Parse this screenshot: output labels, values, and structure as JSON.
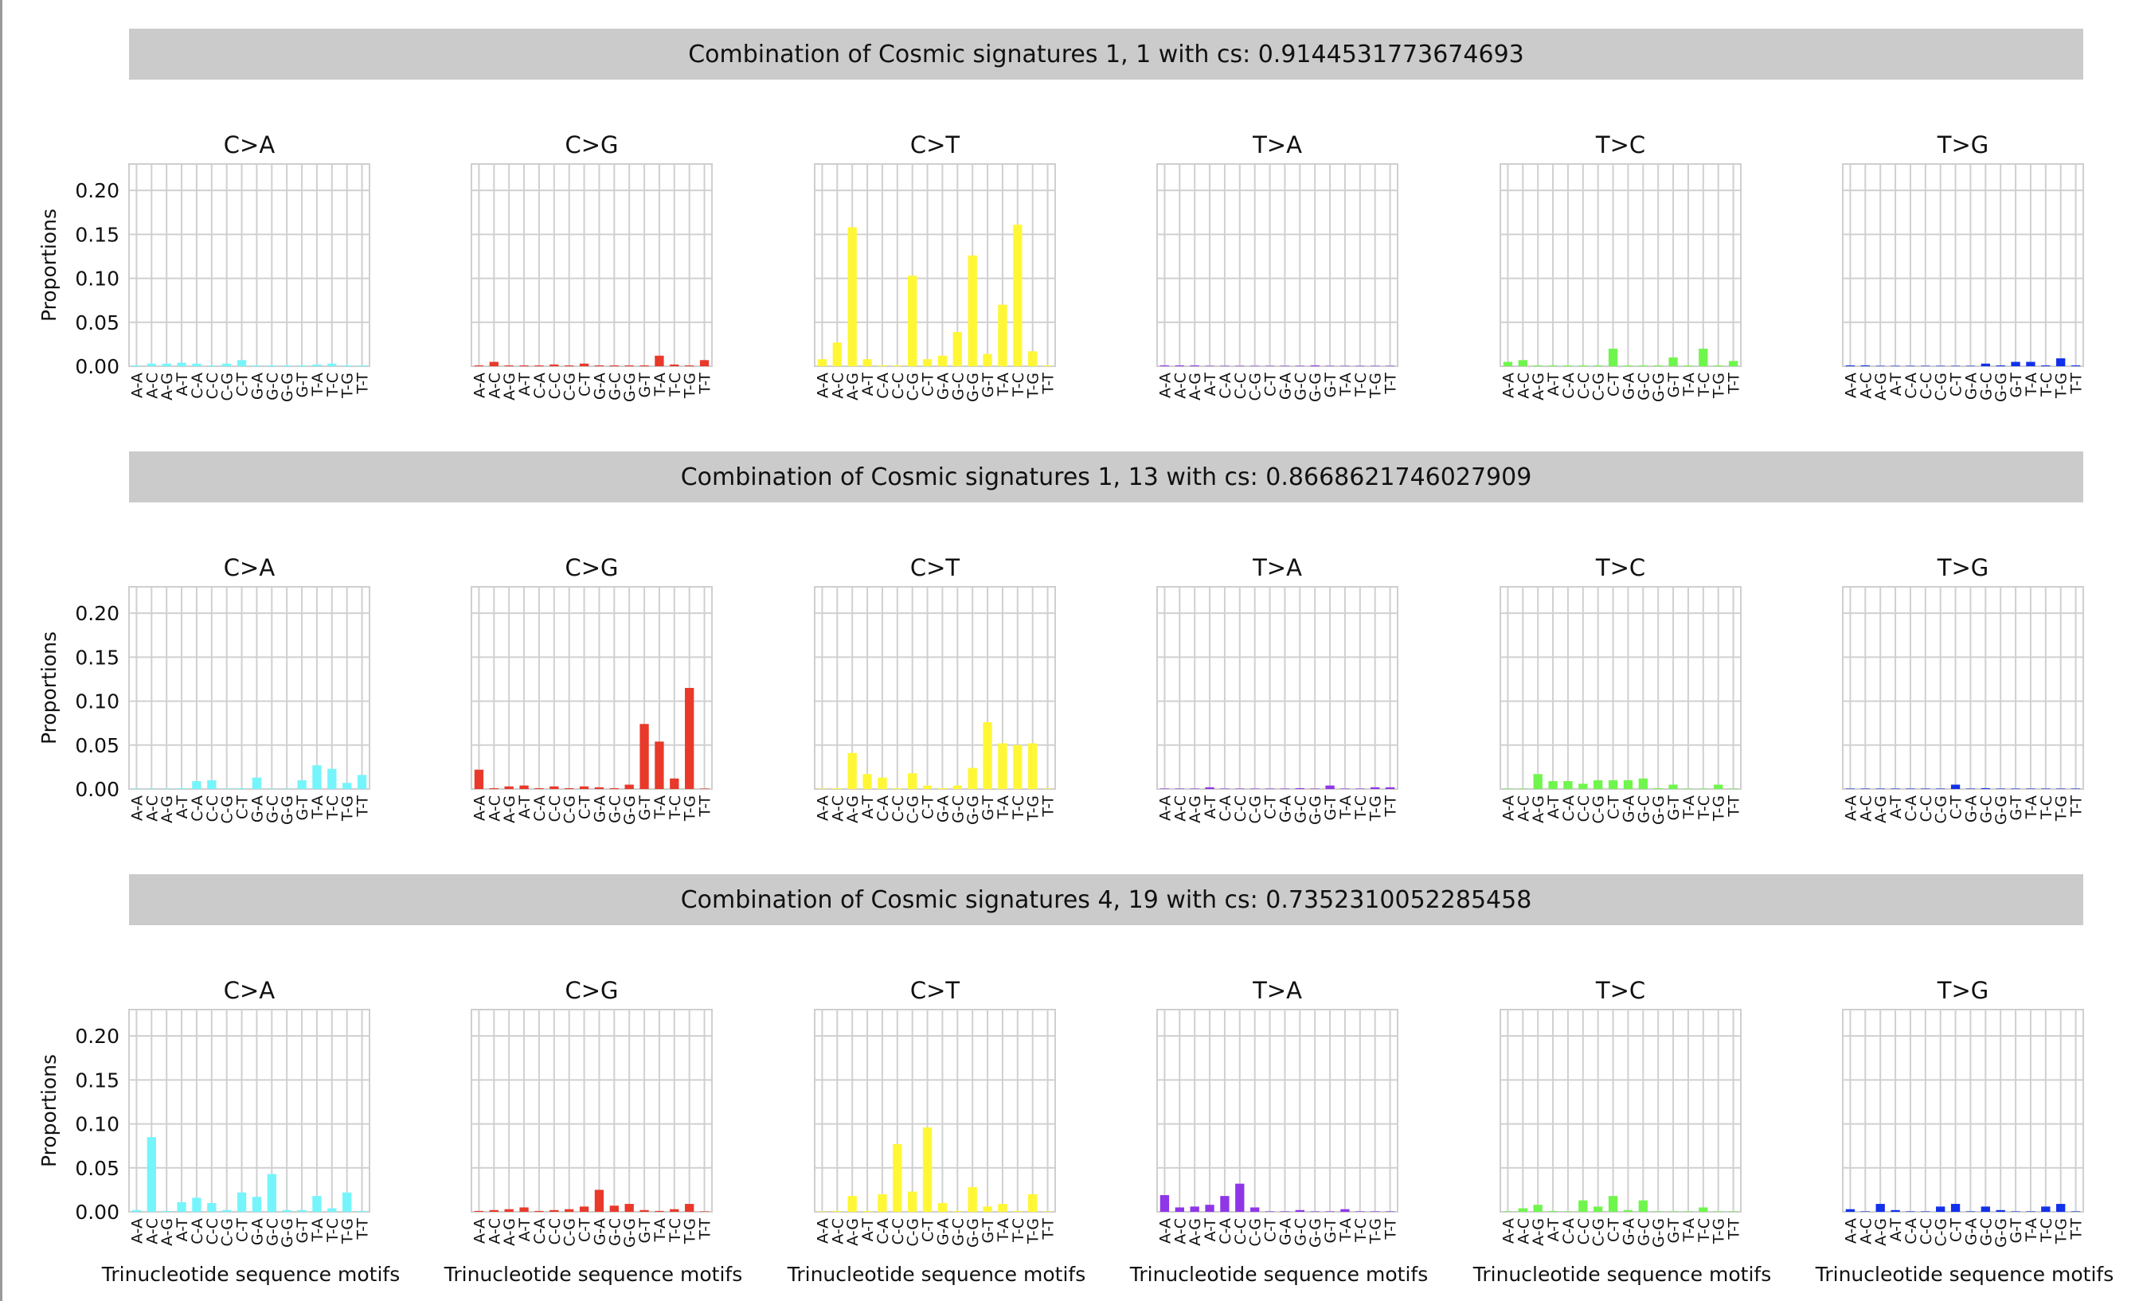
{
  "chart_data": {
    "type": "bar",
    "title": "",
    "ylabel": "Proportions",
    "xlabel": "Trinucleotide sequence motifs",
    "ylim": [
      0,
      0.23
    ],
    "yticks": [
      "0.00",
      "0.05",
      "0.10",
      "0.15",
      "0.20"
    ],
    "categories": [
      "A-A",
      "A-C",
      "A-G",
      "A-T",
      "C-A",
      "C-C",
      "C-G",
      "C-T",
      "G-A",
      "G-C",
      "G-G",
      "G-T",
      "T-A",
      "T-C",
      "T-G",
      "T-T"
    ],
    "panels": [
      "C>A",
      "C>G",
      "C>T",
      "T>A",
      "T>C",
      "T>G"
    ],
    "colors": {
      "C>A": "#75f5fb",
      "C>G": "#e8392b",
      "C>T": "#fff735",
      "T>A": "#8f36e8",
      "T>C": "#70f54d",
      "T>G": "#1231e8"
    },
    "rows": [
      {
        "title": "Combination of Cosmic signatures 1, 1 with cs: 0.9144531773674693",
        "series": {
          "C>A": [
            0.001,
            0.003,
            0.003,
            0.004,
            0.003,
            0.001,
            0.003,
            0.007,
            0.001,
            0.001,
            0.001,
            0.001,
            0.002,
            0.003,
            0.001,
            0.001
          ],
          "C>G": [
            0.001,
            0.005,
            0.001,
            0.001,
            0.001,
            0.002,
            0.001,
            0.003,
            0.001,
            0.001,
            0.001,
            0.001,
            0.012,
            0.002,
            0.001,
            0.007
          ],
          "C>T": [
            0.008,
            0.027,
            0.158,
            0.008,
            0.001,
            0.001,
            0.103,
            0.008,
            0.012,
            0.039,
            0.126,
            0.014,
            0.07,
            0.161,
            0.017,
            0.001
          ],
          "T>A": [
            0.001,
            0.001,
            0.001,
            0.0005,
            0.0005,
            0.0005,
            0.0005,
            0.0005,
            0.0005,
            0.0005,
            0.001,
            0.0005,
            0.0005,
            0.0005,
            0.0005,
            0.0005
          ],
          "T>C": [
            0.005,
            0.007,
            0.001,
            0.001,
            0.001,
            0.001,
            0.001,
            0.02,
            0.001,
            0.001,
            0.001,
            0.01,
            0.001,
            0.02,
            0.001,
            0.006
          ],
          "T>G": [
            0.001,
            0.001,
            0.0005,
            0.0005,
            0.0005,
            0.0005,
            0.0005,
            0.0005,
            0.0005,
            0.003,
            0.001,
            0.005,
            0.005,
            0.001,
            0.009,
            0.001
          ]
        }
      },
      {
        "title": "Combination of Cosmic signatures 1, 13 with cs: 0.8668621746027909",
        "series": {
          "C>A": [
            0.0005,
            0.0005,
            0.0005,
            0.001,
            0.009,
            0.01,
            0.0005,
            0.001,
            0.013,
            0.0005,
            0.0005,
            0.01,
            0.027,
            0.023,
            0.007,
            0.016
          ],
          "C>G": [
            0.022,
            0.001,
            0.003,
            0.004,
            0.001,
            0.003,
            0.001,
            0.003,
            0.002,
            0.001,
            0.005,
            0.074,
            0.054,
            0.012,
            0.115,
            0.0005
          ],
          "C>T": [
            0.0005,
            0.001,
            0.041,
            0.017,
            0.013,
            0.001,
            0.018,
            0.004,
            0.001,
            0.004,
            0.024,
            0.076,
            0.052,
            0.05,
            0.052,
            0.0005
          ],
          "T>A": [
            0.0005,
            0.0005,
            0.0005,
            0.002,
            0.0005,
            0.0005,
            0.0005,
            0.0005,
            0.0005,
            0.001,
            0.0005,
            0.004,
            0.0005,
            0.0005,
            0.002,
            0.002
          ],
          "T>C": [
            0.0005,
            0.0005,
            0.017,
            0.009,
            0.009,
            0.006,
            0.01,
            0.01,
            0.01,
            0.012,
            0.001,
            0.005,
            0.0005,
            0.0005,
            0.005,
            0.0005
          ],
          "T>G": [
            0.0005,
            0.0005,
            0.0005,
            0.0005,
            0.0005,
            0.0005,
            0.0005,
            0.005,
            0.0005,
            0.001,
            0.0005,
            0.0005,
            0.0005,
            0.0005,
            0.0005,
            0.0005
          ]
        }
      },
      {
        "title": "Combination of Cosmic signatures 4, 19 with cs: 0.7352310052285458",
        "series": {
          "C>A": [
            0.002,
            0.085,
            0.001,
            0.011,
            0.016,
            0.01,
            0.002,
            0.022,
            0.017,
            0.043,
            0.002,
            0.002,
            0.018,
            0.004,
            0.022,
            0.001
          ],
          "C>G": [
            0.001,
            0.002,
            0.003,
            0.005,
            0.001,
            0.002,
            0.003,
            0.006,
            0.025,
            0.007,
            0.009,
            0.002,
            0.001,
            0.003,
            0.009,
            0.0005
          ],
          "C>T": [
            0.0005,
            0.001,
            0.018,
            0.001,
            0.02,
            0.077,
            0.023,
            0.096,
            0.01,
            0.001,
            0.028,
            0.006,
            0.009,
            0.001,
            0.02,
            0.0005
          ],
          "T>A": [
            0.019,
            0.005,
            0.006,
            0.008,
            0.018,
            0.032,
            0.005,
            0.0005,
            0.0005,
            0.002,
            0.0005,
            0.0005,
            0.003,
            0.0005,
            0.0005,
            0.0005
          ],
          "T>C": [
            0.0005,
            0.004,
            0.008,
            0.001,
            0.0005,
            0.013,
            0.006,
            0.018,
            0.002,
            0.013,
            0.0005,
            0.0005,
            0.0005,
            0.005,
            0.0005,
            0.0005
          ],
          "T>G": [
            0.003,
            0.0005,
            0.009,
            0.002,
            0.0005,
            0.0005,
            0.006,
            0.009,
            0.0005,
            0.006,
            0.002,
            0.0005,
            0.0005,
            0.006,
            0.009,
            0.0005
          ]
        }
      }
    ]
  }
}
